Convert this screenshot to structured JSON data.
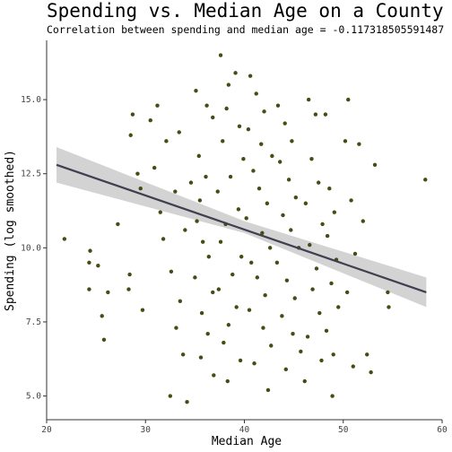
{
  "chart_data": {
    "type": "scatter",
    "title": "Spending vs. Median Age on a County Level",
    "subtitle_prefix": "Correlation between spending and median age = ",
    "correlation": "-0.117318505591487",
    "xlabel": "Median Age",
    "ylabel": "Spending (log smoothed)",
    "xlim": [
      20,
      60
    ],
    "ylim": [
      4.2,
      17.0
    ],
    "x_ticks": [
      20,
      30,
      40,
      50,
      60
    ],
    "x_tick_labels": [
      "20",
      "30",
      "40",
      "50",
      "60"
    ],
    "y_ticks": [
      5.0,
      7.5,
      10.0,
      12.5,
      15.0
    ],
    "y_tick_labels": [
      "5.0",
      "7.5",
      "10.0",
      "12.5",
      "15.0"
    ],
    "grid": false,
    "legend": "none",
    "point_color": "#4a4a14",
    "line_color": "#3f3f4f",
    "band_color": "#c8c8c8",
    "trend": {
      "x_start": 21,
      "y_start": 12.8,
      "x_end": 58.4,
      "y_end": 8.5
    },
    "band": {
      "x": [
        21,
        40,
        58.4
      ],
      "lower": [
        12.2,
        10.5,
        8.0
      ],
      "upper": [
        13.4,
        10.9,
        9.0
      ]
    },
    "points": [
      [
        21.8,
        10.3
      ],
      [
        24.4,
        9.9
      ],
      [
        24.3,
        9.5
      ],
      [
        25.2,
        9.4
      ],
      [
        24.3,
        8.6
      ],
      [
        25.6,
        7.7
      ],
      [
        25.8,
        6.9
      ],
      [
        26.2,
        8.5
      ],
      [
        27.2,
        10.8
      ],
      [
        28.5,
        13.8
      ],
      [
        29.2,
        12.5
      ],
      [
        29.5,
        12.0
      ],
      [
        28.4,
        9.1
      ],
      [
        28.3,
        8.6
      ],
      [
        29.7,
        7.9
      ],
      [
        30.5,
        14.3
      ],
      [
        31.2,
        14.8
      ],
      [
        32.1,
        13.6
      ],
      [
        33.0,
        11.9
      ],
      [
        31.8,
        10.3
      ],
      [
        32.6,
        9.2
      ],
      [
        33.5,
        8.2
      ],
      [
        33.8,
        6.4
      ],
      [
        32.5,
        5.0
      ],
      [
        34.2,
        4.8
      ],
      [
        35.1,
        15.3
      ],
      [
        36.2,
        14.8
      ],
      [
        36.8,
        14.4
      ],
      [
        35.4,
        13.1
      ],
      [
        36.1,
        12.4
      ],
      [
        35.5,
        11.6
      ],
      [
        35.2,
        10.9
      ],
      [
        35.8,
        10.2
      ],
      [
        36.4,
        9.7
      ],
      [
        35.0,
        9.0
      ],
      [
        36.8,
        8.5
      ],
      [
        35.7,
        7.8
      ],
      [
        36.3,
        7.1
      ],
      [
        35.6,
        6.3
      ],
      [
        36.9,
        5.7
      ],
      [
        37.6,
        16.5
      ],
      [
        38.4,
        15.5
      ],
      [
        39.1,
        15.9
      ],
      [
        38.2,
        14.7
      ],
      [
        39.5,
        14.1
      ],
      [
        37.8,
        13.6
      ],
      [
        39.9,
        13.0
      ],
      [
        38.6,
        12.4
      ],
      [
        37.3,
        11.9
      ],
      [
        39.4,
        11.3
      ],
      [
        38.1,
        10.8
      ],
      [
        37.6,
        10.2
      ],
      [
        39.7,
        9.7
      ],
      [
        38.8,
        9.1
      ],
      [
        37.4,
        8.6
      ],
      [
        39.2,
        8.0
      ],
      [
        38.4,
        7.4
      ],
      [
        37.9,
        6.8
      ],
      [
        39.6,
        6.2
      ],
      [
        38.3,
        5.5
      ],
      [
        40.6,
        15.8
      ],
      [
        41.2,
        15.2
      ],
      [
        42.0,
        14.6
      ],
      [
        40.4,
        14.0
      ],
      [
        41.7,
        13.5
      ],
      [
        42.8,
        13.1
      ],
      [
        40.9,
        12.6
      ],
      [
        41.5,
        12.0
      ],
      [
        42.3,
        11.5
      ],
      [
        40.2,
        11.0
      ],
      [
        41.8,
        10.5
      ],
      [
        42.6,
        10.0
      ],
      [
        40.7,
        9.5
      ],
      [
        41.3,
        9.0
      ],
      [
        42.1,
        8.4
      ],
      [
        40.5,
        7.9
      ],
      [
        41.9,
        7.3
      ],
      [
        42.7,
        6.7
      ],
      [
        41.0,
        6.1
      ],
      [
        42.4,
        5.2
      ],
      [
        43.4,
        14.8
      ],
      [
        44.1,
        14.2
      ],
      [
        44.8,
        13.6
      ],
      [
        43.6,
        12.9
      ],
      [
        44.5,
        12.3
      ],
      [
        45.2,
        11.7
      ],
      [
        43.9,
        11.1
      ],
      [
        44.7,
        10.6
      ],
      [
        45.5,
        10.0
      ],
      [
        43.3,
        9.5
      ],
      [
        44.3,
        8.9
      ],
      [
        45.1,
        8.3
      ],
      [
        43.8,
        7.7
      ],
      [
        44.9,
        7.1
      ],
      [
        45.7,
        6.5
      ],
      [
        44.2,
        5.9
      ],
      [
        46.5,
        15.0
      ],
      [
        47.2,
        14.5
      ],
      [
        46.8,
        13.0
      ],
      [
        47.5,
        12.2
      ],
      [
        46.2,
        11.5
      ],
      [
        47.9,
        10.8
      ],
      [
        46.6,
        10.1
      ],
      [
        47.3,
        9.3
      ],
      [
        46.9,
        8.6
      ],
      [
        47.6,
        7.8
      ],
      [
        46.4,
        7.0
      ],
      [
        47.8,
        6.2
      ],
      [
        46.1,
        5.5
      ],
      [
        48.2,
        14.5
      ],
      [
        48.6,
        12.0
      ],
      [
        49.1,
        11.2
      ],
      [
        48.4,
        10.4
      ],
      [
        49.3,
        9.6
      ],
      [
        48.8,
        8.8
      ],
      [
        49.5,
        8.0
      ],
      [
        48.3,
        7.2
      ],
      [
        49.0,
        6.4
      ],
      [
        48.9,
        5.0
      ],
      [
        50.2,
        13.6
      ],
      [
        50.5,
        15.0
      ],
      [
        50.8,
        11.6
      ],
      [
        51.2,
        9.8
      ],
      [
        50.4,
        8.5
      ],
      [
        51.0,
        6.0
      ],
      [
        51.6,
        13.5
      ],
      [
        52.0,
        10.9
      ],
      [
        52.4,
        6.4
      ],
      [
        53.2,
        12.8
      ],
      [
        52.8,
        5.8
      ],
      [
        54.5,
        8.5
      ],
      [
        54.6,
        8.0
      ],
      [
        58.3,
        12.3
      ],
      [
        28.7,
        14.5
      ],
      [
        30.9,
        12.7
      ],
      [
        31.5,
        11.2
      ],
      [
        33.4,
        13.9
      ],
      [
        34.6,
        12.2
      ],
      [
        34.0,
        10.6
      ],
      [
        33.1,
        7.3
      ]
    ]
  }
}
